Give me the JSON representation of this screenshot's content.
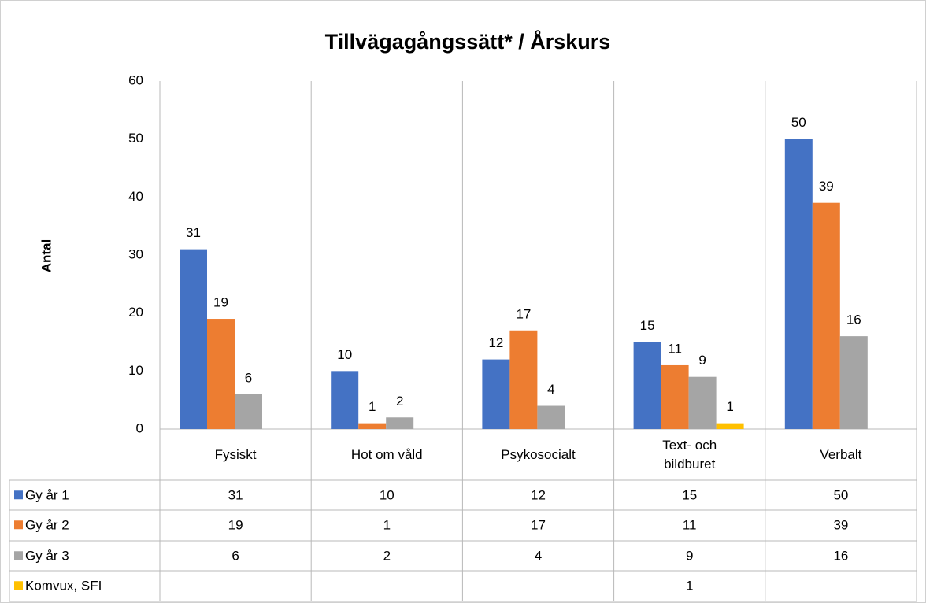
{
  "chart_data": {
    "type": "bar",
    "title": "Tillvägagångssätt* / Årskurs",
    "y_label": "Antal",
    "categories": [
      "Fysiskt",
      "Hot om våld",
      "Psykosocialt",
      "Text- och bildburet",
      "Verbalt"
    ],
    "series": [
      {
        "name": "Gy år 1",
        "color": "#4472c4",
        "values": [
          31,
          10,
          12,
          15,
          50
        ]
      },
      {
        "name": "Gy år 2",
        "color": "#ed7d31",
        "values": [
          19,
          1,
          17,
          11,
          39
        ]
      },
      {
        "name": "Gy år 3",
        "color": "#a5a5a5",
        "values": [
          6,
          2,
          4,
          9,
          16
        ]
      },
      {
        "name": "Komvux, SFI",
        "color": "#ffc000",
        "values": [
          null,
          null,
          null,
          1,
          null
        ]
      }
    ],
    "ylim": [
      0,
      60
    ],
    "yticks": [
      0,
      10,
      20,
      30,
      40,
      50,
      60
    ],
    "grid": false,
    "data_table": true
  }
}
